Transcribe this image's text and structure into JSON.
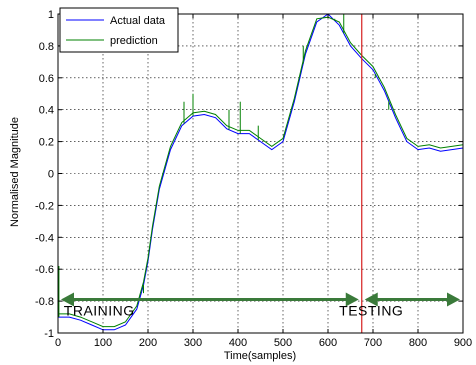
{
  "chart_data": {
    "type": "line",
    "xlabel": "Time(samples)",
    "ylabel": "Normalised Magnitude",
    "xlim": [
      0,
      900
    ],
    "ylim": [
      -1,
      1
    ],
    "xticks": [
      0,
      100,
      200,
      300,
      400,
      500,
      600,
      700,
      800,
      900
    ],
    "yticks": [
      -1,
      -0.8,
      -0.6,
      -0.4,
      -0.2,
      0,
      0.2,
      0.4,
      0.6,
      0.8,
      1
    ],
    "grid": true,
    "legend": "top-left",
    "colors": {
      "actual": "#0000ff",
      "prediction": "#008000",
      "split_line": "#d62020",
      "arrows": "#3a7a3a"
    },
    "series": [
      {
        "name": "Actual data",
        "x": [
          0,
          25,
          50,
          75,
          100,
          125,
          150,
          175,
          190,
          200,
          210,
          225,
          250,
          275,
          300,
          325,
          350,
          375,
          400,
          425,
          450,
          475,
          500,
          525,
          550,
          575,
          600,
          625,
          650,
          675,
          700,
          725,
          750,
          775,
          800,
          825,
          850,
          875,
          900
        ],
        "y": [
          -0.9,
          -0.9,
          -0.92,
          -0.95,
          -0.98,
          -0.98,
          -0.95,
          -0.85,
          -0.7,
          -0.55,
          -0.35,
          -0.1,
          0.15,
          0.3,
          0.36,
          0.37,
          0.35,
          0.28,
          0.25,
          0.25,
          0.2,
          0.15,
          0.2,
          0.45,
          0.75,
          0.95,
          1.0,
          0.93,
          0.8,
          0.72,
          0.65,
          0.52,
          0.35,
          0.2,
          0.15,
          0.16,
          0.14,
          0.15,
          0.16
        ]
      },
      {
        "name": "prediction",
        "x": [
          0,
          25,
          50,
          75,
          100,
          125,
          150,
          175,
          190,
          200,
          210,
          225,
          250,
          275,
          300,
          325,
          350,
          375,
          400,
          425,
          450,
          475,
          500,
          525,
          550,
          575,
          600,
          625,
          650,
          675,
          700,
          725,
          750,
          775,
          800,
          825,
          850,
          875,
          900
        ],
        "y": [
          -0.88,
          -0.88,
          -0.9,
          -0.93,
          -0.96,
          -0.96,
          -0.93,
          -0.83,
          -0.68,
          -0.53,
          -0.33,
          -0.08,
          0.17,
          0.32,
          0.38,
          0.39,
          0.37,
          0.3,
          0.27,
          0.27,
          0.22,
          0.17,
          0.22,
          0.47,
          0.77,
          0.97,
          0.98,
          0.95,
          0.82,
          0.74,
          0.67,
          0.54,
          0.37,
          0.22,
          0.17,
          0.18,
          0.16,
          0.17,
          0.18
        ]
      }
    ],
    "prediction_spikes": [
      {
        "x": 2,
        "y": -0.58
      },
      {
        "x": 100,
        "y": -0.99
      },
      {
        "x": 190,
        "y": -0.75
      },
      {
        "x": 280,
        "y": 0.45
      },
      {
        "x": 300,
        "y": 0.5
      },
      {
        "x": 380,
        "y": 0.4
      },
      {
        "x": 405,
        "y": 0.45
      },
      {
        "x": 445,
        "y": 0.3
      },
      {
        "x": 545,
        "y": 0.8
      },
      {
        "x": 615,
        "y": 0.97
      },
      {
        "x": 635,
        "y": 1.0
      },
      {
        "x": 705,
        "y": 0.6
      },
      {
        "x": 735,
        "y": 0.4
      }
    ],
    "split_x": 675,
    "annotations": [
      {
        "text": "TRAINING",
        "x_range": [
          0,
          675
        ],
        "y": -0.79,
        "label_x": 385,
        "label_y": -0.86
      },
      {
        "text": "TESTING",
        "x_range": [
          675,
          900
        ],
        "y": -0.79,
        "label_x": 785,
        "label_y": -0.86
      }
    ]
  }
}
